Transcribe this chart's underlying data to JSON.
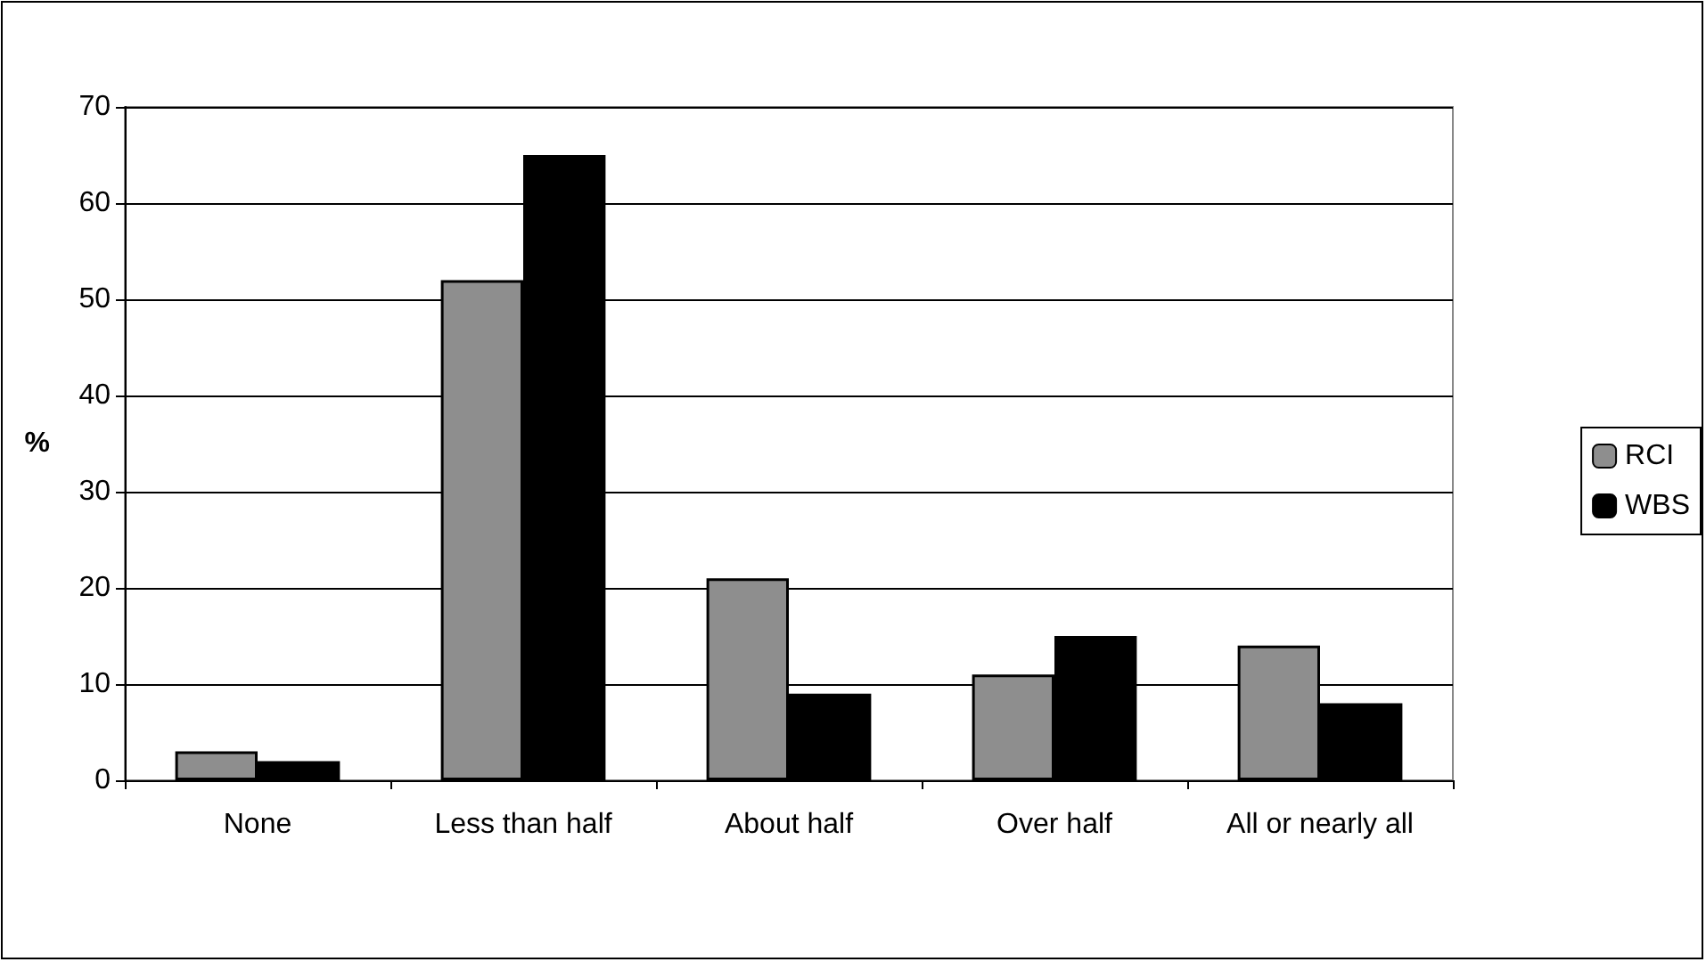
{
  "chart_data": {
    "type": "bar",
    "ylabel": "%",
    "categories": [
      "None",
      "Less than half",
      "About half",
      "Over half",
      "All or nearly all"
    ],
    "series": [
      {
        "name": "RCI",
        "color": "#8e8e8e",
        "values": [
          3,
          52,
          21,
          11,
          14
        ]
      },
      {
        "name": "WBS",
        "color": "#000000",
        "values": [
          2,
          65,
          9,
          15,
          8
        ]
      }
    ],
    "ylim": [
      0,
      70
    ],
    "yticks": [
      0,
      10,
      20,
      30,
      40,
      50,
      60,
      70
    ],
    "grid": "y",
    "legend": "right"
  }
}
